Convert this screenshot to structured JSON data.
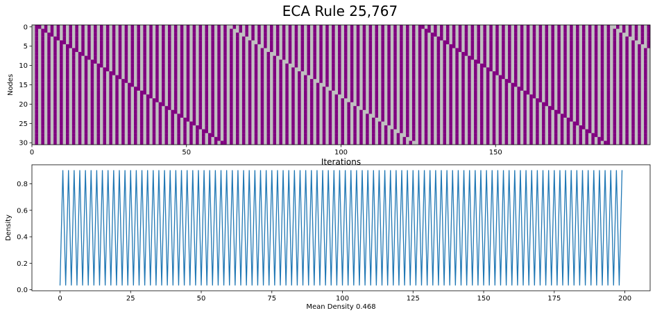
{
  "figure": {
    "title": "ECA Rule 25,767"
  },
  "chart_data": [
    {
      "type": "heatmap",
      "title": "ECA Rule 25,767",
      "xlabel": "Iterations",
      "ylabel": "Nodes",
      "rows": 31,
      "cols": 200,
      "xlim": [
        0,
        200
      ],
      "ylim": [
        0,
        31
      ],
      "xticks": [
        0,
        50,
        100,
        150
      ],
      "yticks": [
        0,
        5,
        10,
        15,
        20,
        25,
        30
      ],
      "grid": false,
      "colors": {
        "on": "#800080",
        "off": "#c0c0c0"
      },
      "pattern": "Cells alternate on/off each iteration, with a single phase-shift defect travelling diagonally down the nodes"
    },
    {
      "type": "line",
      "xlabel": "Mean Density 0.468",
      "ylabel": "Density",
      "xlim": [
        -9.95,
        208.95
      ],
      "ylim": [
        -0.0077,
        0.9438
      ],
      "xticks": [
        0,
        25,
        50,
        75,
        100,
        125,
        150,
        175,
        200
      ],
      "yticks": [
        0.0,
        0.2,
        0.4,
        0.6,
        0.8
      ],
      "ytick_labels": [
        "0.0",
        "0.2",
        "0.4",
        "0.6",
        "0.8"
      ],
      "grid": false,
      "color": "#1f77b4",
      "series": [
        {
          "x_start": 0,
          "x_end": 199,
          "low": 0.0323,
          "high": 0.9032,
          "pattern": "alternating, starting low at x=0"
        }
      ]
    }
  ]
}
